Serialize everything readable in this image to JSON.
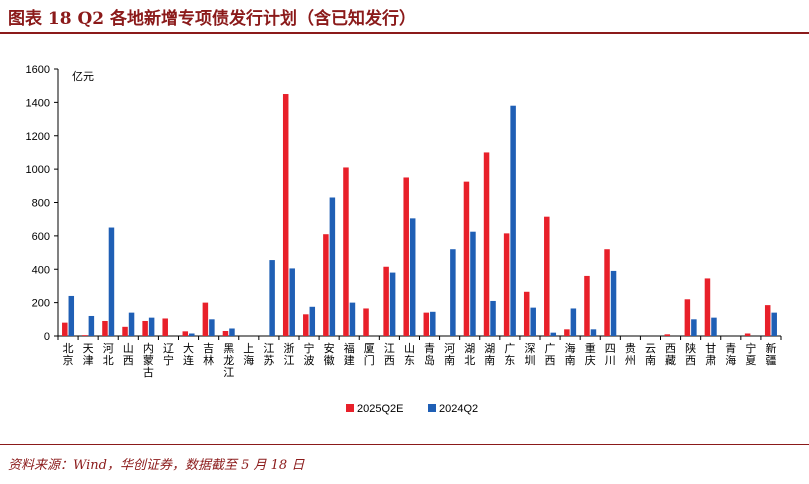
{
  "figure": {
    "title": "图表 18   Q2 各地新增专项债发行计划（含已知发行）",
    "source": "资料来源：Wind，华创证券，数据截至 5 月 18 日",
    "accent_color": "#8b1a1a"
  },
  "chart_data": {
    "type": "bar",
    "unit_label": "亿元",
    "ylim": [
      0,
      1600
    ],
    "yticks": [
      0,
      200,
      400,
      600,
      800,
      1000,
      1200,
      1400,
      1600
    ],
    "legend_position": "bottom-center",
    "grid": false,
    "categories": [
      "北京",
      "天津",
      "河北",
      "山西",
      "内蒙古",
      "辽宁",
      "大连",
      "吉林",
      "黑龙江",
      "上海",
      "江苏",
      "浙江",
      "宁波",
      "安徽",
      "福建",
      "厦门",
      "江西",
      "山东",
      "青岛",
      "河南",
      "湖北",
      "湖南",
      "广东",
      "深圳",
      "广西",
      "海南",
      "重庆",
      "四川",
      "贵州",
      "云南",
      "西藏",
      "陕西",
      "甘肃",
      "青海",
      "宁夏",
      "新疆"
    ],
    "series": [
      {
        "name": "2025Q2E",
        "color": "#e8202a",
        "values": [
          80,
          5,
          90,
          55,
          90,
          105,
          28,
          200,
          30,
          0,
          0,
          1450,
          130,
          610,
          1010,
          165,
          415,
          950,
          140,
          0,
          925,
          1100,
          615,
          265,
          715,
          40,
          360,
          520,
          0,
          0,
          10,
          220,
          345,
          0,
          15,
          185
        ]
      },
      {
        "name": "2024Q2",
        "color": "#1f5fb5",
        "values": [
          240,
          120,
          650,
          140,
          110,
          0,
          15,
          100,
          45,
          0,
          455,
          405,
          175,
          830,
          200,
          0,
          380,
          705,
          145,
          520,
          625,
          210,
          1380,
          170,
          20,
          165,
          40,
          390,
          0,
          0,
          0,
          100,
          110,
          0,
          0,
          140
        ]
      }
    ]
  }
}
